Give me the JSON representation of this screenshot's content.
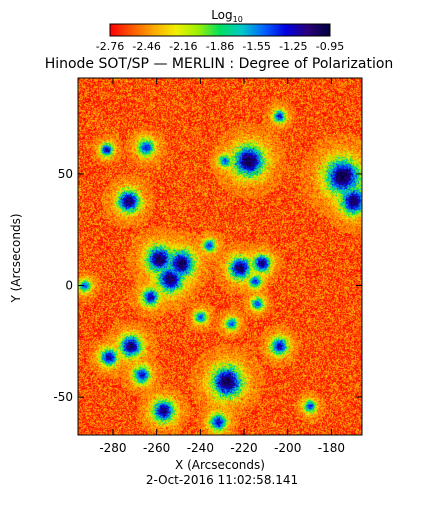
{
  "colorbar": {
    "label_main": "Log",
    "label_sub": "10",
    "tick_labels": [
      "-2.76",
      "-2.46",
      "-2.16",
      "-1.86",
      "-1.55",
      "-1.25",
      "-0.95"
    ],
    "colors": [
      "#ff0000",
      "#ff5a00",
      "#ffaa00",
      "#f0f000",
      "#9cf000",
      "#00e060",
      "#00c8c8",
      "#0064ff",
      "#0000e0",
      "#2a007a",
      "#000040"
    ]
  },
  "chart_data": {
    "type": "heatmap",
    "title": "Hinode SOT/SP — MERLIN : Degree of Polarization",
    "xlabel": "X (Arcseconds)",
    "ylabel": "Y (Arcseconds)",
    "date_label": "2-Oct-2016 11:02:58.141",
    "xlim": [
      -296,
      -166
    ],
    "ylim": [
      -67,
      93
    ],
    "x_ticks": [
      -280,
      -260,
      -240,
      -220,
      -200,
      -180
    ],
    "x_tick_labels": [
      "-280",
      "-260",
      "-240",
      "-220",
      "-200",
      "-180"
    ],
    "y_ticks": [
      -50,
      0,
      50
    ],
    "y_tick_labels": [
      "-50",
      "0",
      "50"
    ],
    "value_range_log10": [
      -2.76,
      -0.95
    ],
    "background_log10": -2.6,
    "patches": [
      {
        "x": -273,
        "y": 38,
        "r": 5,
        "peak": -1.0
      },
      {
        "x": -283,
        "y": 61,
        "r": 3,
        "peak": -1.2
      },
      {
        "x": -265,
        "y": 62,
        "r": 4,
        "peak": -1.35
      },
      {
        "x": -229,
        "y": 56,
        "r": 3,
        "peak": -1.4
      },
      {
        "x": -218,
        "y": 56,
        "r": 7,
        "peak": -0.95
      },
      {
        "x": -204,
        "y": 76,
        "r": 3,
        "peak": -1.3
      },
      {
        "x": -175,
        "y": 49,
        "r": 8,
        "peak": -0.95
      },
      {
        "x": -170,
        "y": 38,
        "r": 6,
        "peak": -1.0
      },
      {
        "x": -259,
        "y": 12,
        "r": 6,
        "peak": -0.98
      },
      {
        "x": -249,
        "y": 10,
        "r": 6,
        "peak": -0.98
      },
      {
        "x": -254,
        "y": 3,
        "r": 6,
        "peak": -1.0
      },
      {
        "x": -263,
        "y": -5,
        "r": 4,
        "peak": -1.2
      },
      {
        "x": -236,
        "y": 18,
        "r": 3,
        "peak": -1.35
      },
      {
        "x": -222,
        "y": 8,
        "r": 5,
        "peak": -1.0
      },
      {
        "x": -212,
        "y": 10,
        "r": 4,
        "peak": -1.05
      },
      {
        "x": -215,
        "y": 2,
        "r": 3,
        "peak": -1.3
      },
      {
        "x": -240,
        "y": -14,
        "r": 3,
        "peak": -1.45
      },
      {
        "x": -226,
        "y": -17,
        "r": 3,
        "peak": -1.45
      },
      {
        "x": -272,
        "y": -27,
        "r": 5,
        "peak": -1.05
      },
      {
        "x": -282,
        "y": -32,
        "r": 4,
        "peak": -1.15
      },
      {
        "x": -267,
        "y": -40,
        "r": 4,
        "peak": -1.25
      },
      {
        "x": -228,
        "y": -43,
        "r": 7,
        "peak": -0.95
      },
      {
        "x": -204,
        "y": -27,
        "r": 4,
        "peak": -1.2
      },
      {
        "x": -257,
        "y": -56,
        "r": 5,
        "peak": -1.05
      },
      {
        "x": -232,
        "y": -61,
        "r": 4,
        "peak": -1.25
      },
      {
        "x": -190,
        "y": -54,
        "r": 3,
        "peak": -1.4
      },
      {
        "x": -293,
        "y": 0,
        "r": 3,
        "peak": -1.45
      },
      {
        "x": -214,
        "y": -8,
        "r": 3,
        "peak": -1.4
      }
    ]
  }
}
